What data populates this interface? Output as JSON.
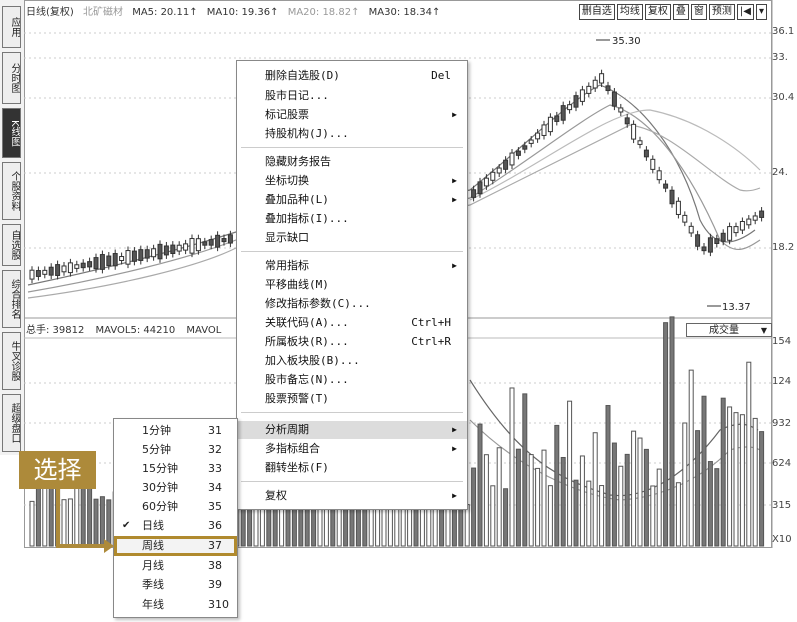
{
  "sidebar": {
    "tabs": [
      {
        "label": "应用",
        "active": false
      },
      {
        "label": "分时图",
        "active": false
      },
      {
        "label": "K线图",
        "active": true
      },
      {
        "label": "个股资料",
        "active": false
      },
      {
        "label": "自选股",
        "active": false
      },
      {
        "label": "综合排名",
        "active": false
      },
      {
        "label": "牛叉诊股",
        "active": false
      },
      {
        "label": "超级盘口",
        "active": false
      }
    ]
  },
  "chart_header": {
    "period": "日线(复权)",
    "name": "北矿磁材",
    "ma5": "MA5: 20.11↑",
    "ma10": "MA10: 19.36↑",
    "ma20": "MA20: 18.82↑",
    "ma30": "MA30: 18.34↑"
  },
  "toolbar": {
    "buttons": [
      "删自选",
      "均线",
      "复权",
      "叠",
      "窗",
      "预测"
    ]
  },
  "price_scale": [
    "36.1",
    "33.",
    "30.4",
    "24.",
    "18.2"
  ],
  "annotations": {
    "high": "35.30",
    "low": "13.37"
  },
  "volume_header": {
    "total": "总手: 39812",
    "mavol5": "MAVOL5: 44210",
    "mavol10": "MAVOL"
  },
  "volume_select": "成交量",
  "volume_scale": [
    "154",
    "124",
    "932",
    "624",
    "315",
    "X10"
  ],
  "context_menu": {
    "items": [
      {
        "label": "删除自选股(D)",
        "shortcut": "Del",
        "arrow": false
      },
      {
        "label": "股市日记...",
        "shortcut": "",
        "arrow": false
      },
      {
        "label": "标记股票",
        "shortcut": "",
        "arrow": true
      },
      {
        "label": "持股机构(J)...",
        "shortcut": "",
        "arrow": false
      },
      {
        "label": "隐藏财务报告",
        "shortcut": "",
        "arrow": false
      },
      {
        "label": "坐标切换",
        "shortcut": "",
        "arrow": true
      },
      {
        "label": "叠加品种(L)",
        "shortcut": "",
        "arrow": true
      },
      {
        "label": "叠加指标(I)...",
        "shortcut": "",
        "arrow": false
      },
      {
        "label": "显示缺口",
        "shortcut": "",
        "arrow": false
      },
      {
        "label": "常用指标",
        "shortcut": "",
        "arrow": true
      },
      {
        "label": "平移曲线(M)",
        "shortcut": "",
        "arrow": false
      },
      {
        "label": "修改指标参数(C)...",
        "shortcut": "",
        "arrow": false
      },
      {
        "label": "关联代码(A)...",
        "shortcut": "Ctrl+H",
        "arrow": false
      },
      {
        "label": "所属板块(R)...",
        "shortcut": "Ctrl+R",
        "arrow": false
      },
      {
        "label": "加入板块股(B)...",
        "shortcut": "",
        "arrow": false
      },
      {
        "label": "股市备忘(N)...",
        "shortcut": "",
        "arrow": false
      },
      {
        "label": "股票预警(T)",
        "shortcut": "",
        "arrow": false
      },
      {
        "label": "分析周期",
        "shortcut": "",
        "arrow": true
      },
      {
        "label": "多指标组合",
        "shortcut": "",
        "arrow": true
      },
      {
        "label": "翻转坐标(F)",
        "shortcut": "",
        "arrow": false
      },
      {
        "label": "复权",
        "shortcut": "",
        "arrow": true
      }
    ]
  },
  "period_submenu": {
    "items": [
      {
        "label": "1分钟",
        "key": "31"
      },
      {
        "label": "5分钟",
        "key": "32"
      },
      {
        "label": "15分钟",
        "key": "33"
      },
      {
        "label": "30分钟",
        "key": "34"
      },
      {
        "label": "60分钟",
        "key": "35"
      },
      {
        "label": "日线",
        "key": "36"
      },
      {
        "label": "周线",
        "key": "37"
      },
      {
        "label": "月线",
        "key": "38"
      },
      {
        "label": "季线",
        "key": "39"
      },
      {
        "label": "年线",
        "key": "310"
      }
    ],
    "checked": "日线",
    "selected": "周线"
  },
  "callout": "选择",
  "colors": {
    "accent": "#ad8a3a",
    "candle_up": "#ffffff",
    "candle_down": "#555555"
  }
}
